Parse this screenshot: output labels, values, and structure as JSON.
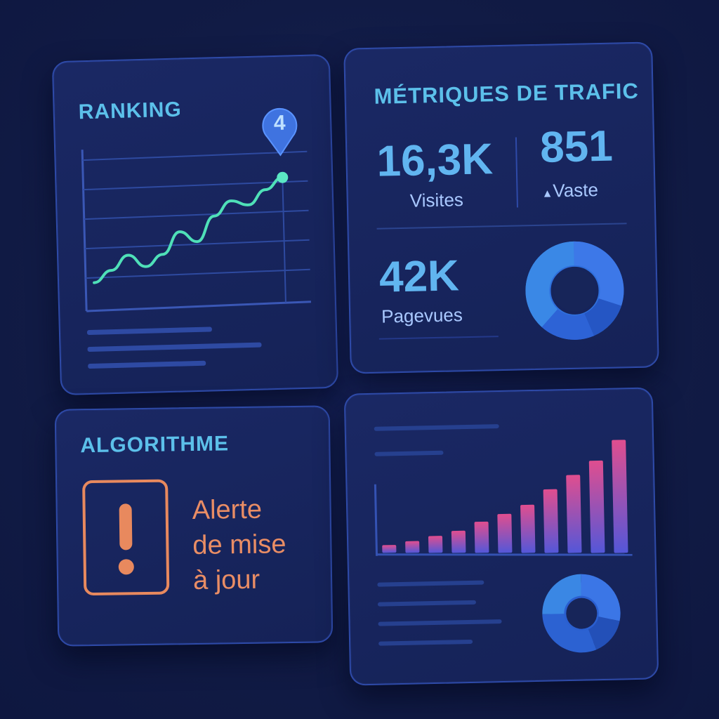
{
  "ranking": {
    "title": "RANKING",
    "position_badge": "4",
    "trend_icon": "line-chart-icon",
    "pin_icon": "map-pin-icon"
  },
  "trafic": {
    "title": "MÉTRIQUES DE TRAFIC",
    "visits_value": "16,3K",
    "visits_label": "Visites",
    "vaste_value": "851",
    "vaste_label": "Vaste",
    "vaste_icon": "triangle-up-icon",
    "pageviews_value": "42K",
    "pageviews_label": "Pagevues",
    "donut_icon": "donut-chart-icon"
  },
  "algorithme": {
    "title": "ALGORITHME",
    "alert_icon": "exclamation-icon",
    "alert_lines": [
      "Alerte",
      "de mise",
      "à jour"
    ]
  },
  "bars": {
    "bar_icon": "bar-chart-icon",
    "donut_icon": "donut-chart-icon"
  },
  "colors": {
    "background": "#111b45",
    "card": "#1a2864",
    "accent_cyan": "#5cc0ea",
    "accent_green": "#4fe0b8",
    "alert_orange": "#e98d65",
    "bar_start": "#5b5ee0",
    "bar_end": "#e04e8f"
  },
  "chart_data": [
    {
      "type": "line",
      "title": "",
      "x": [
        1,
        2,
        3,
        4,
        5,
        6,
        7,
        8,
        9,
        10,
        11,
        12
      ],
      "values": [
        12,
        20,
        30,
        22,
        30,
        45,
        38,
        55,
        65,
        62,
        72,
        80
      ],
      "ylim": [
        0,
        100
      ],
      "grid": true
    },
    {
      "type": "bar",
      "title": "",
      "categories": [
        "1",
        "2",
        "3",
        "4",
        "5",
        "6",
        "7",
        "8",
        "9",
        "10",
        "11"
      ],
      "values": [
        6,
        9,
        13,
        17,
        24,
        30,
        37,
        49,
        60,
        71,
        87
      ],
      "ylim": [
        0,
        100
      ]
    }
  ]
}
